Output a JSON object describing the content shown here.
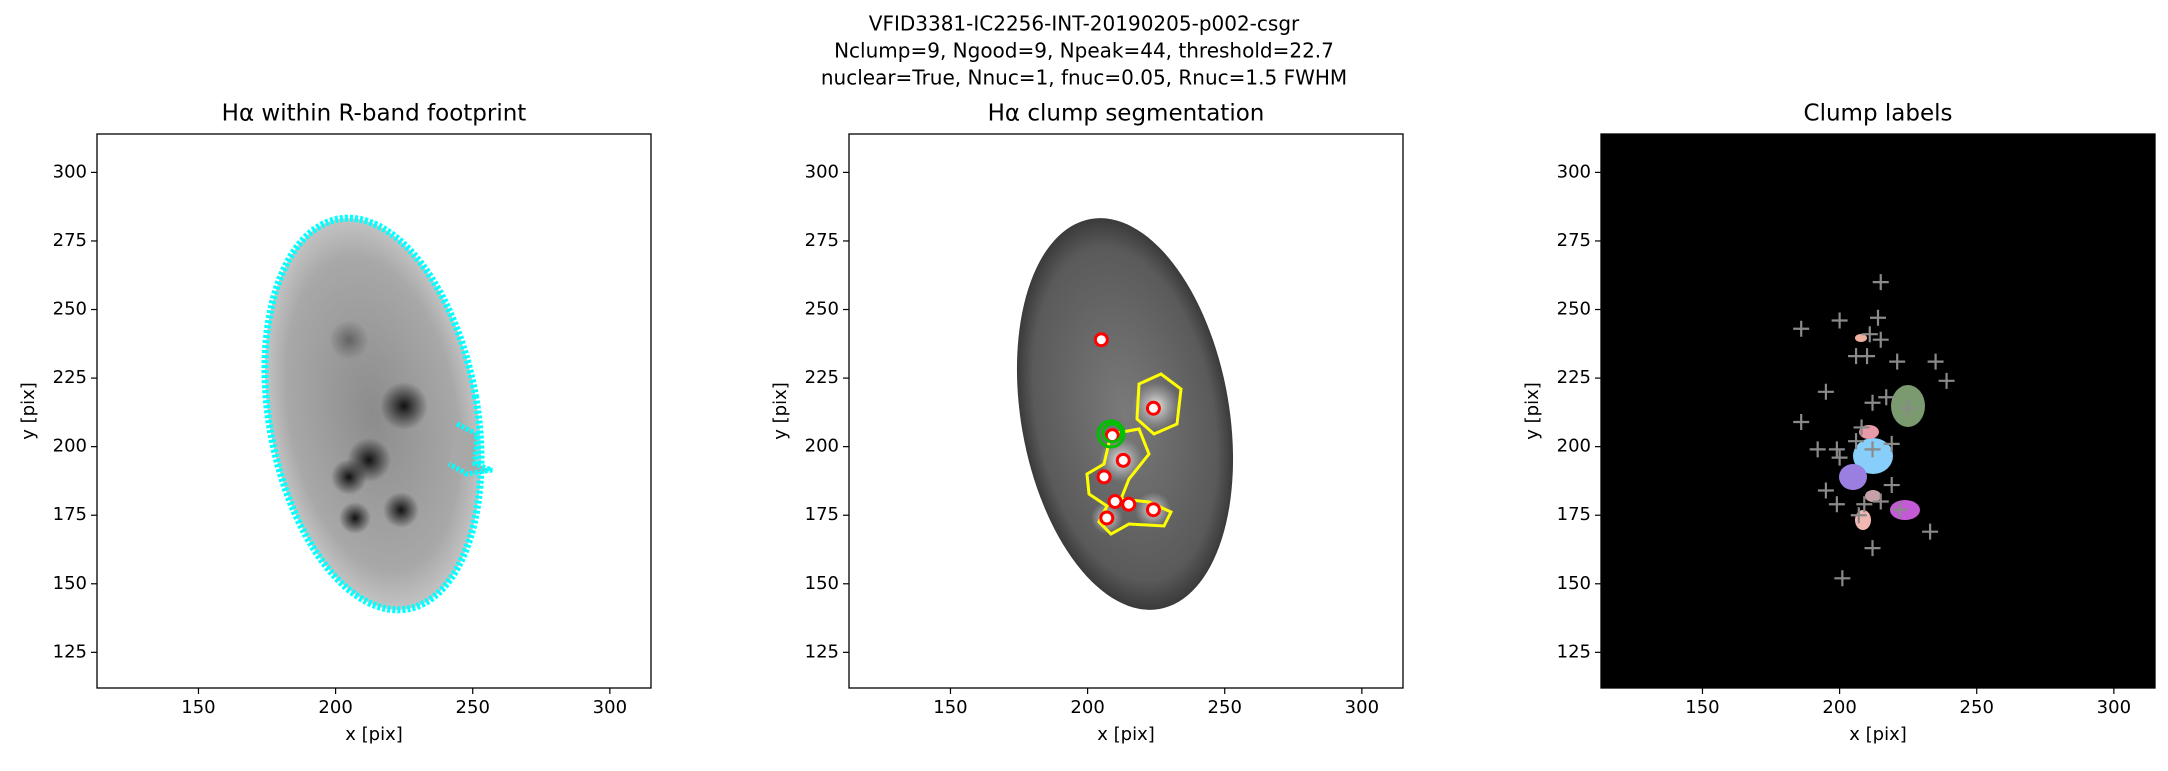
{
  "suptitle": [
    "VFID3381-IC2256-INT-20190205-p002-csgr",
    "Nclump=9, Ngood=9, Npeak=44, threshold=22.7",
    "nuclear=True, Nnuc=1, fnuc=0.05, Rnuc=1.5 FWHM"
  ],
  "chart_data": [
    {
      "type": "image",
      "title": "Hα within R-band footprint",
      "xlabel": "x [pix]",
      "ylabel": "y [pix]",
      "xlim": [
        113,
        315
      ],
      "ylim": [
        112,
        314
      ],
      "xticks": [
        150,
        200,
        250,
        300
      ],
      "yticks": [
        125,
        150,
        175,
        200,
        225,
        250,
        275,
        300
      ]
    },
    {
      "type": "image",
      "title": "Hα clump segmentation",
      "xlabel": "x [pix]",
      "ylabel": "y [pix]",
      "xlim": [
        113,
        315
      ],
      "ylim": [
        112,
        314
      ],
      "xticks": [
        150,
        200,
        250,
        300
      ],
      "yticks": [
        125,
        150,
        175,
        200,
        225,
        250,
        275,
        300
      ],
      "clumps": {
        "color": "#ff0000",
        "x": [
          205,
          224,
          209,
          213,
          206,
          210,
          215,
          224,
          207
        ],
        "y": [
          239,
          214,
          204,
          195,
          189,
          180,
          179,
          177,
          174
        ]
      },
      "nucleus": {
        "color": "#00c000",
        "x": [
          209
        ],
        "y": [
          205
        ]
      }
    },
    {
      "type": "image",
      "title": "Clump labels",
      "xlabel": "x [pix]",
      "ylabel": "y [pix]",
      "xlim": [
        113,
        315
      ],
      "ylim": [
        112,
        314
      ],
      "xticks": [
        150,
        200,
        250,
        300
      ],
      "yticks": [
        125,
        150,
        175,
        200,
        225,
        250,
        275,
        300
      ],
      "peaks": {
        "color": "#8a8a8a",
        "x": [
          215,
          186,
          200,
          214,
          211,
          215,
          206,
          210,
          221,
          235,
          239,
          186,
          195,
          212,
          217,
          225,
          208,
          192,
          199,
          200,
          206,
          212,
          219,
          195,
          219,
          199,
          207,
          209,
          215,
          222,
          233,
          212,
          201
        ],
        "y": [
          260,
          243,
          246,
          247,
          241,
          239,
          233,
          233,
          231,
          231,
          224,
          209,
          220,
          216,
          218,
          214,
          207,
          199,
          199,
          196,
          202,
          199,
          201,
          184,
          186,
          179,
          175,
          179,
          180,
          177,
          169,
          163,
          152
        ]
      }
    }
  ]
}
